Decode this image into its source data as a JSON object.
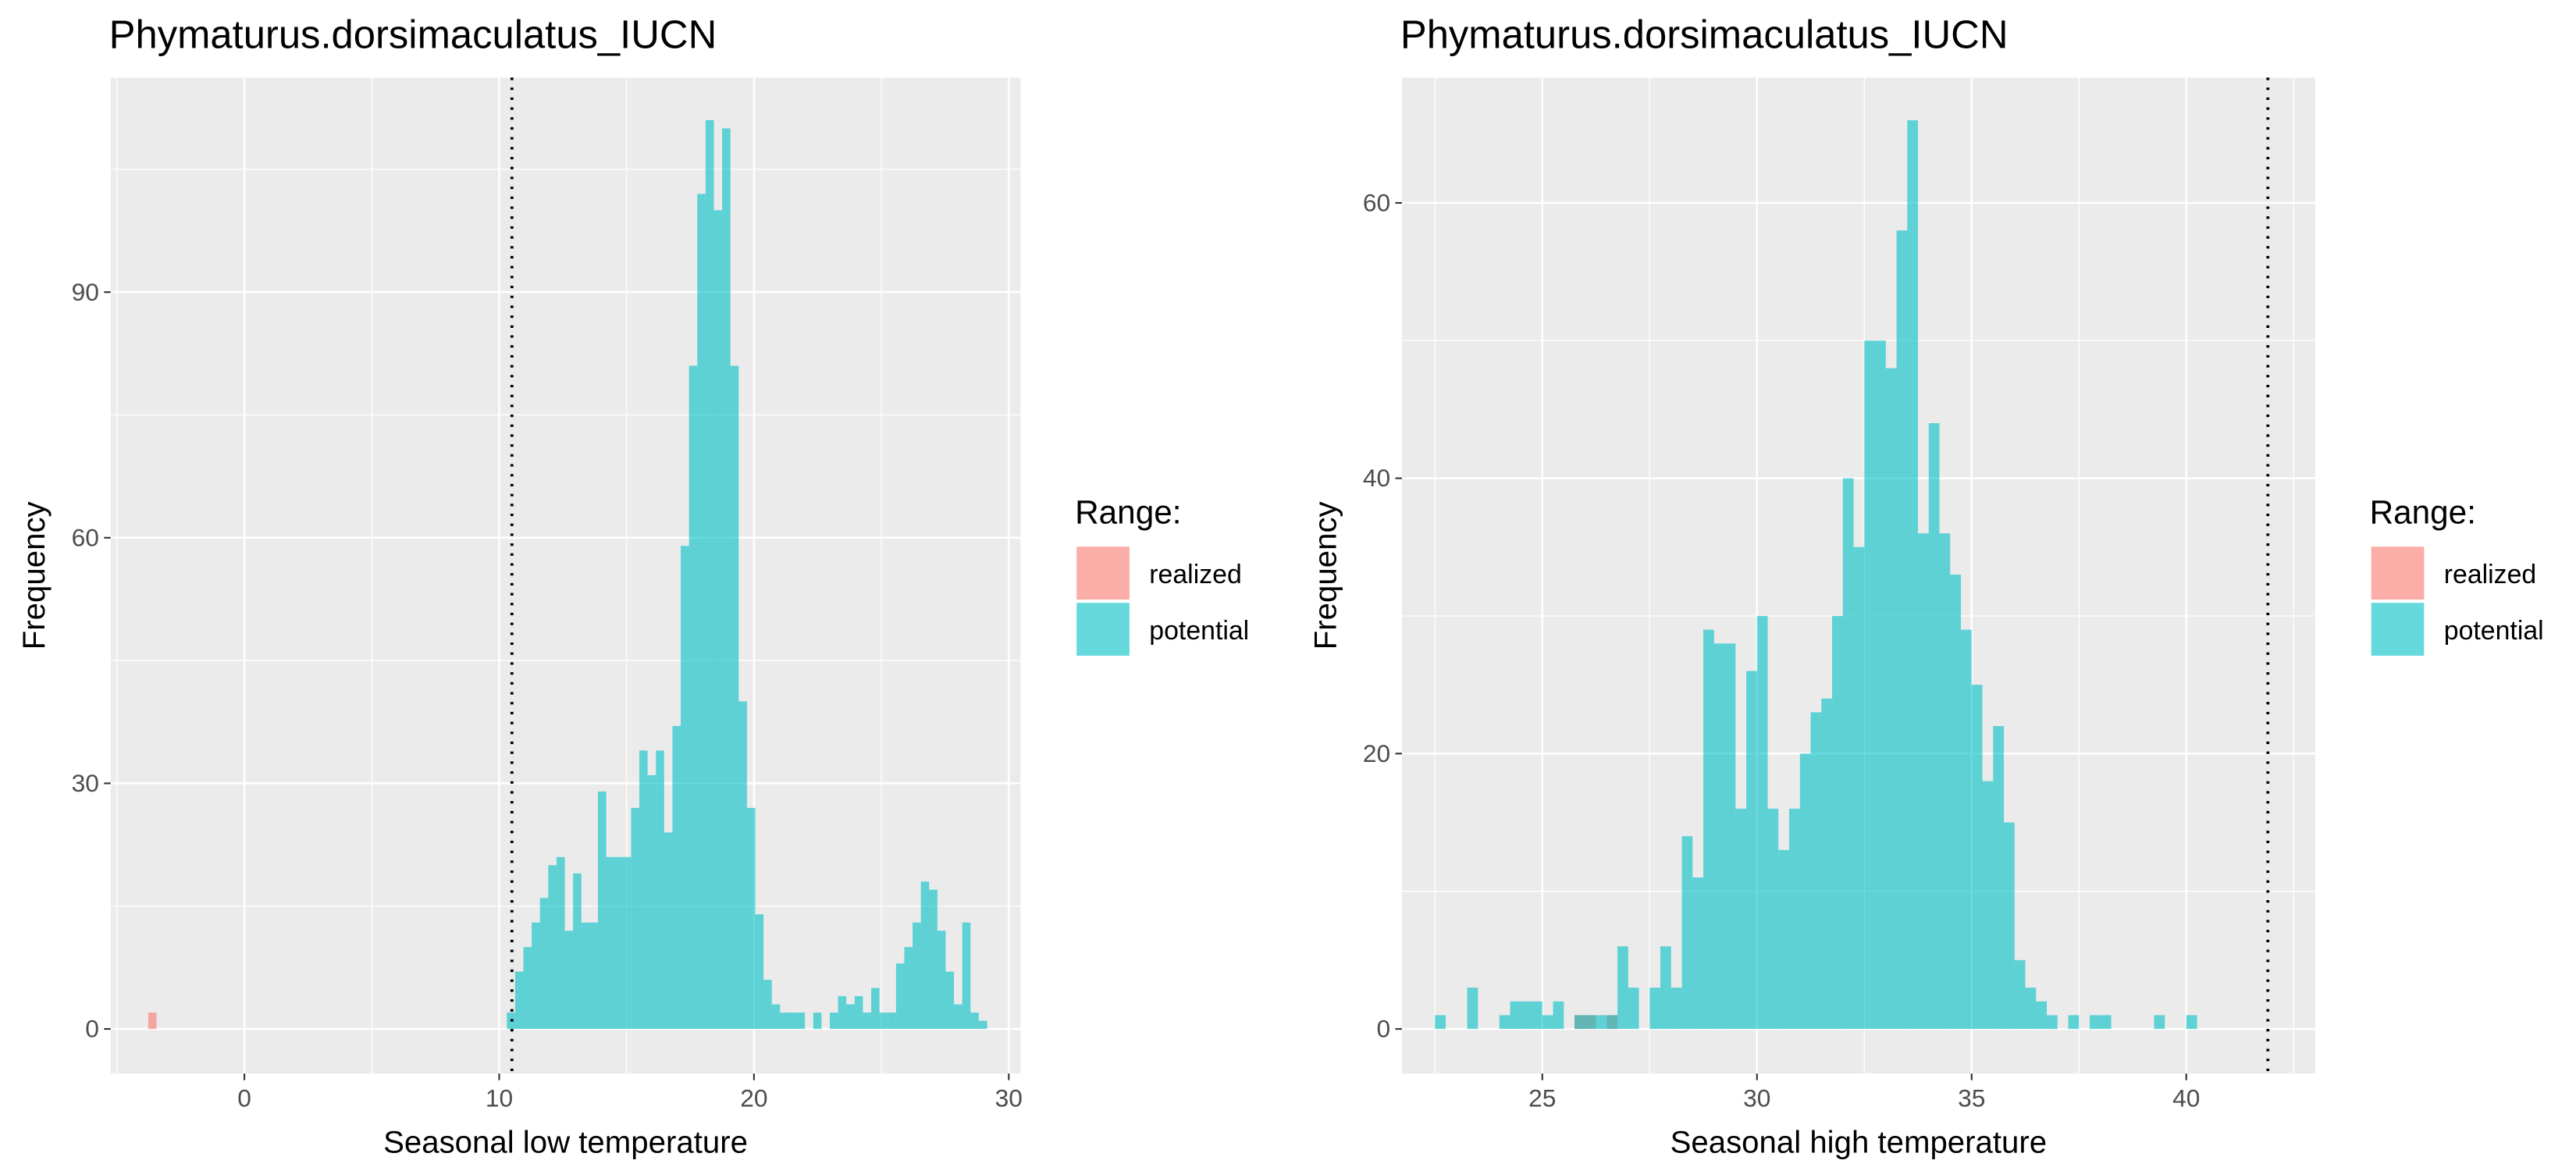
{
  "chart_data": [
    {
      "type": "histogram",
      "title": "Phymaturus.dorsimaculatus_IUCN",
      "x_label": "Seasonal low temperature",
      "y_label": "Frequency",
      "legend_title": "Range:",
      "alpha": 0.6,
      "grid": true,
      "reference_line": 10.5,
      "xlim": [
        -5.25,
        30.46
      ],
      "ylim": [
        -5.45,
        116.2
      ],
      "xticks": [
        0,
        10,
        20,
        30
      ],
      "yticks": [
        0,
        30,
        60,
        90
      ],
      "minor_xticks": [
        -5,
        5,
        15,
        25
      ],
      "minor_yticks": [
        15,
        45,
        75,
        105
      ],
      "series": [
        {
          "name": "realized",
          "color": "#F8766D",
          "bins": [
            -3.775,
            -3.45
          ],
          "values": [
            2
          ]
        },
        {
          "name": "potential",
          "color": "#00BFC4",
          "bins": [
            10.3,
            10.625,
            10.95,
            11.275,
            11.6,
            11.925,
            12.25,
            12.575,
            12.9,
            13.225,
            13.55,
            13.875,
            14.2,
            14.525,
            14.85,
            15.175,
            15.5,
            15.825,
            16.15,
            16.475,
            16.8,
            17.125,
            17.45,
            17.775,
            18.1,
            18.425,
            18.75,
            19.075,
            19.4,
            19.725,
            20.05,
            20.375,
            20.7,
            21.025,
            21.35,
            21.675,
            22.0,
            22.325,
            22.65,
            22.975,
            23.3,
            23.625,
            23.95,
            24.275,
            24.6,
            24.925,
            25.25,
            25.575,
            25.9,
            26.225,
            26.55,
            26.875,
            27.2,
            27.525,
            27.85,
            28.175,
            28.5,
            28.825,
            29.15
          ],
          "values": [
            2,
            7,
            10,
            13,
            16,
            20,
            21,
            12,
            19,
            13,
            13,
            29,
            21,
            21,
            21,
            27,
            34,
            31,
            34,
            24,
            37,
            59,
            81,
            102,
            111,
            100,
            110,
            81,
            40,
            27,
            14,
            6,
            3,
            2,
            2,
            2,
            0,
            2,
            0,
            2,
            4,
            3,
            4,
            2,
            5,
            2,
            2,
            8,
            10,
            13,
            18,
            17,
            12,
            7,
            3,
            13,
            2,
            1
          ]
        }
      ]
    },
    {
      "type": "histogram",
      "title": "Phymaturus.dorsimaculatus_IUCN",
      "x_label": "Seasonal high temperature",
      "y_label": "Frequency",
      "legend_title": "Range:",
      "alpha": 0.6,
      "grid": true,
      "reference_line": 41.9,
      "xlim": [
        21.73,
        43.0
      ],
      "ylim": [
        -3.24,
        69.1
      ],
      "xticks": [
        25,
        30,
        35,
        40
      ],
      "yticks": [
        0,
        20,
        40,
        60
      ],
      "minor_xticks": [
        22.5,
        27.5,
        32.5,
        37.5,
        42.5
      ],
      "minor_yticks": [
        10,
        30,
        50
      ],
      "series": [
        {
          "name": "realized",
          "color": "#F8766D",
          "bins": [
            25.75,
            26.0,
            26.25,
            26.5,
            26.75
          ],
          "values": [
            1,
            1,
            0,
            1
          ]
        },
        {
          "name": "potential",
          "color": "#00BFC4",
          "bins": [
            22.5,
            22.75,
            23.0,
            23.25,
            23.5,
            23.75,
            24.0,
            24.25,
            24.5,
            24.75,
            25.0,
            25.25,
            25.5,
            25.75,
            26.0,
            26.25,
            26.5,
            26.75,
            27.0,
            27.25,
            27.5,
            27.75,
            28.0,
            28.25,
            28.5,
            28.75,
            29.0,
            29.25,
            29.5,
            29.75,
            30.0,
            30.25,
            30.5,
            30.75,
            31.0,
            31.25,
            31.5,
            31.75,
            32.0,
            32.25,
            32.5,
            32.75,
            33.0,
            33.25,
            33.5,
            33.75,
            34.0,
            34.25,
            34.5,
            34.75,
            35.0,
            35.25,
            35.5,
            35.75,
            36.0,
            36.25,
            36.5,
            36.75,
            37.0,
            37.25,
            37.5,
            37.75,
            38.0,
            38.25,
            38.5,
            38.75,
            39.0,
            39.25,
            39.5,
            39.75,
            40.0,
            40.25
          ],
          "values": [
            1,
            0,
            0,
            3,
            0,
            0,
            1,
            2,
            2,
            2,
            1,
            2,
            0,
            1,
            1,
            1,
            1,
            6,
            3,
            0,
            3,
            6,
            3,
            14,
            11,
            29,
            28,
            28,
            16,
            26,
            30,
            16,
            13,
            16,
            20,
            23,
            24,
            30,
            40,
            35,
            50,
            50,
            48,
            58,
            66,
            36,
            44,
            36,
            33,
            29,
            25,
            18,
            22,
            15,
            5,
            3,
            2,
            1,
            0,
            1,
            0,
            1,
            1,
            0,
            0,
            0,
            0,
            1,
            0,
            0,
            1
          ]
        }
      ]
    }
  ]
}
